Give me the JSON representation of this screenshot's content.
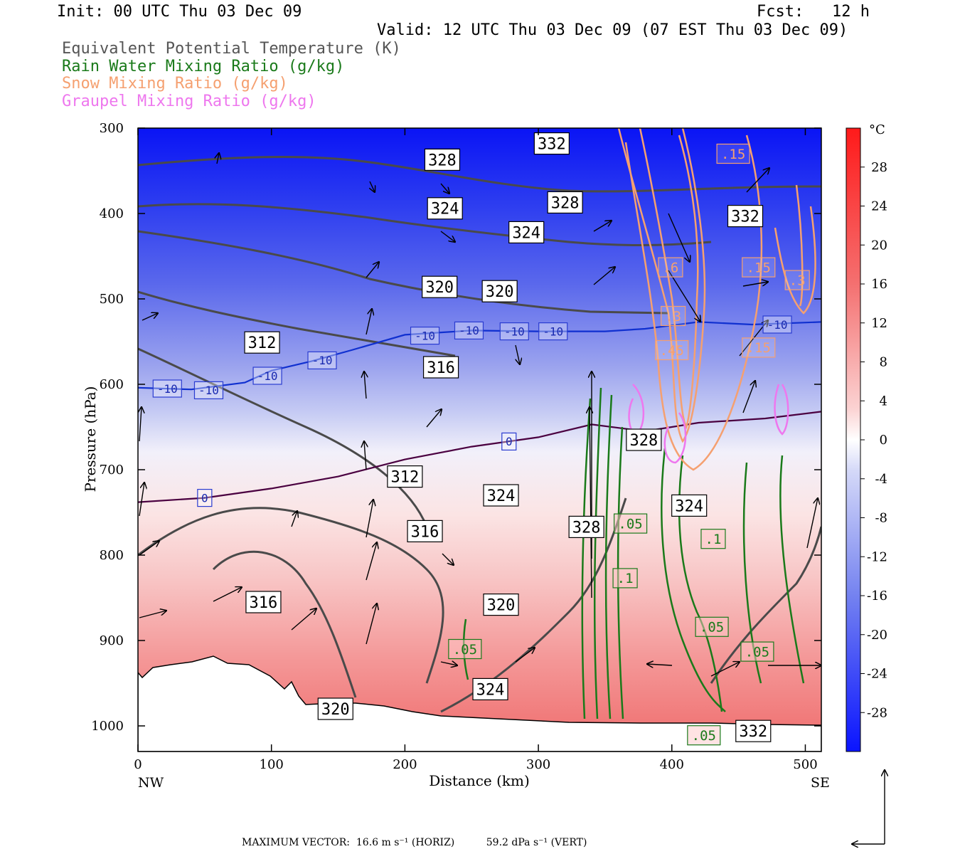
{
  "header": {
    "init": "Init: 00 UTC Thu 03 Dec 09",
    "fcst": "Fcst:   12 h",
    "valid": "Valid: 12 UTC Thu 03 Dec 09 (07 EST Thu 03 Dec 09)",
    "fields": [
      {
        "label": "Equivalent Potential Temperature (K)",
        "color": "#555555"
      },
      {
        "label": "Rain Water Mixing Ratio (g/kg)",
        "color": "#1a7a1a"
      },
      {
        "label": "Snow Mixing Ratio (g/kg)",
        "color": "#f5a070"
      },
      {
        "label": "Graupel Mixing Ratio (g/kg)",
        "color": "#ee77ee"
      }
    ]
  },
  "chart_data": {
    "type": "heatmap",
    "xlabel": "Distance (km)",
    "ylabel": "Pressure (hPa)",
    "x_ticks": [
      0,
      100,
      200,
      300,
      400,
      500
    ],
    "y_ticks": [
      300,
      400,
      500,
      600,
      700,
      800,
      900,
      1000
    ],
    "xlim": [
      0,
      512
    ],
    "ylim": [
      300,
      1030
    ],
    "y_inverted": true,
    "endpoints": {
      "left": "NW",
      "right": "SE"
    },
    "colorbar": {
      "unit": "°C",
      "ticks": [
        28,
        24,
        20,
        16,
        12,
        8,
        4,
        0,
        -4,
        -8,
        -12,
        -16,
        -20,
        -24,
        -28
      ],
      "range": [
        -32,
        32
      ]
    },
    "isotherms": [
      {
        "label": "-10",
        "color": "#1030d0",
        "points": [
          [
            0,
            604
          ],
          [
            40,
            606
          ],
          [
            80,
            598
          ],
          [
            100,
            584
          ],
          [
            130,
            573
          ],
          [
            160,
            560
          ],
          [
            200,
            542
          ],
          [
            250,
            537
          ],
          [
            300,
            538
          ],
          [
            350,
            538
          ],
          [
            380,
            535
          ],
          [
            420,
            527
          ],
          [
            460,
            530
          ],
          [
            512,
            527
          ]
        ]
      },
      {
        "label": "0",
        "color": "#4a0040",
        "points": [
          [
            0,
            738
          ],
          [
            50,
            733
          ],
          [
            100,
            722
          ],
          [
            150,
            708
          ],
          [
            200,
            688
          ],
          [
            250,
            673
          ],
          [
            300,
            662
          ],
          [
            340,
            647
          ],
          [
            380,
            655
          ],
          [
            420,
            645
          ],
          [
            470,
            640
          ],
          [
            512,
            632
          ]
        ]
      }
    ],
    "isotherm_labels": [
      {
        "text": "-10",
        "x": 22,
        "y": 605
      },
      {
        "text": "-10",
        "x": 53,
        "y": 607
      },
      {
        "text": "-10",
        "x": 97,
        "y": 590
      },
      {
        "text": "-10",
        "x": 138,
        "y": 572
      },
      {
        "text": "-10",
        "x": 215,
        "y": 543
      },
      {
        "text": "-10",
        "x": 248,
        "y": 537
      },
      {
        "text": "-10",
        "x": 282,
        "y": 538
      },
      {
        "text": "-10",
        "x": 311,
        "y": 538
      },
      {
        "text": "-10",
        "x": 479,
        "y": 530
      },
      {
        "text": "0",
        "x": 50,
        "y": 733
      },
      {
        "text": "0",
        "x": 278,
        "y": 667
      }
    ],
    "theta_e_labels": [
      {
        "text": "332",
        "x": 310,
        "y": 318
      },
      {
        "text": "328",
        "x": 228,
        "y": 337
      },
      {
        "text": "328",
        "x": 320,
        "y": 387
      },
      {
        "text": "324",
        "x": 230,
        "y": 394
      },
      {
        "text": "332",
        "x": 455,
        "y": 403
      },
      {
        "text": "324",
        "x": 291,
        "y": 422
      },
      {
        "text": "320",
        "x": 226,
        "y": 486
      },
      {
        "text": "320",
        "x": 271,
        "y": 491
      },
      {
        "text": "312",
        "x": 93,
        "y": 551
      },
      {
        "text": "316",
        "x": 227,
        "y": 580
      },
      {
        "text": "328",
        "x": 379,
        "y": 665
      },
      {
        "text": "312",
        "x": 200,
        "y": 708
      },
      {
        "text": "324",
        "x": 272,
        "y": 730
      },
      {
        "text": "324",
        "x": 413,
        "y": 742
      },
      {
        "text": "328",
        "x": 336,
        "y": 767
      },
      {
        "text": "316",
        "x": 215,
        "y": 772
      },
      {
        "text": "316",
        "x": 94,
        "y": 855
      },
      {
        "text": "320",
        "x": 272,
        "y": 858
      },
      {
        "text": "324",
        "x": 264,
        "y": 957
      },
      {
        "text": "320",
        "x": 148,
        "y": 980
      },
      {
        "text": "332",
        "x": 461,
        "y": 1006
      }
    ],
    "rain_labels": [
      {
        "text": ".05",
        "x": 369,
        "y": 763
      },
      {
        "text": ".1",
        "x": 431,
        "y": 781
      },
      {
        "text": ".1",
        "x": 365,
        "y": 827
      },
      {
        "text": ".05",
        "x": 430,
        "y": 884
      },
      {
        "text": ".05",
        "x": 245,
        "y": 910
      },
      {
        "text": ".05",
        "x": 464,
        "y": 913
      },
      {
        "text": ".05",
        "x": 424,
        "y": 1011
      }
    ],
    "snow_labels": [
      {
        "text": ".15",
        "x": 446,
        "y": 330
      },
      {
        "text": ".6",
        "x": 399,
        "y": 463
      },
      {
        "text": ".15",
        "x": 465,
        "y": 463
      },
      {
        "text": ".3",
        "x": 494,
        "y": 478
      },
      {
        "text": ".3",
        "x": 401,
        "y": 520
      },
      {
        "text": ".45",
        "x": 400,
        "y": 560
      },
      {
        "text": ".15",
        "x": 465,
        "y": 557
      }
    ],
    "max_vector": "MAXIMUM VECTOR:  16.6 m s⁻¹ (HORIZ)          59.2 dPa s⁻¹ (VERT)"
  }
}
